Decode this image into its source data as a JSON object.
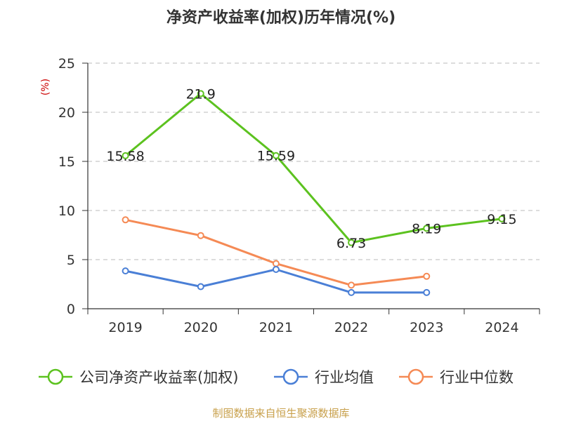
{
  "chart_data": {
    "type": "line",
    "title": "净资产收益率(加权)历年情况(%)",
    "ylabel": "(%)",
    "xlabel": "",
    "categories": [
      "2019",
      "2020",
      "2021",
      "2022",
      "2023",
      "2024"
    ],
    "ylim": [
      0,
      25
    ],
    "yticks": [
      0,
      5,
      10,
      15,
      20,
      25
    ],
    "grid": true,
    "legend_position": "bottom",
    "series": [
      {
        "name": "公司净资产收益率(加权)",
        "color": "#5cc21f",
        "values": [
          15.58,
          21.9,
          15.59,
          6.73,
          8.19,
          9.15
        ],
        "labels": [
          "15.58",
          "21.9",
          "15.59",
          "6.73",
          "8.19",
          "9.15"
        ]
      },
      {
        "name": "行业均值",
        "color": "#4a7fd6",
        "values": [
          3.85,
          2.25,
          4.0,
          1.65,
          1.65,
          null
        ]
      },
      {
        "name": "行业中位数",
        "color": "#f58a55",
        "values": [
          9.05,
          7.45,
          4.6,
          2.4,
          3.3,
          null
        ]
      }
    ]
  },
  "source": "制图数据来自恒生聚源数据库",
  "colors": {
    "unit": "#cc0000",
    "source": "#c8a04b",
    "grid": "#bbbbbb",
    "axis": "#333333"
  }
}
